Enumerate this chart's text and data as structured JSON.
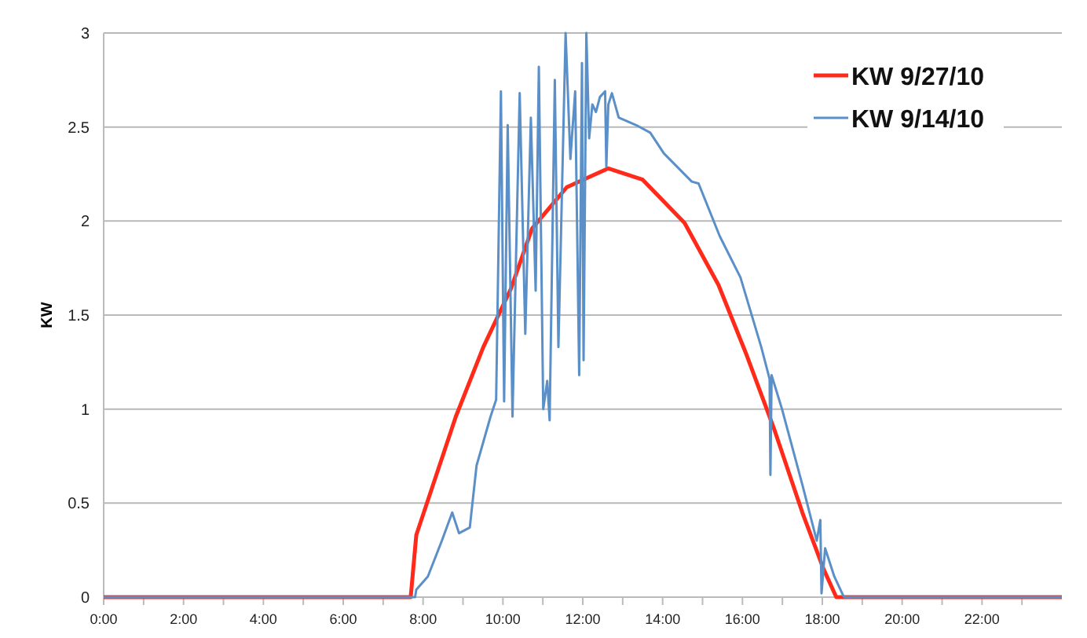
{
  "chart_data": {
    "type": "line",
    "ylabel": "KW",
    "xlim": [
      0,
      24
    ],
    "ylim": [
      0,
      3
    ],
    "yticks": [
      0,
      0.5,
      1,
      1.5,
      2,
      2.5,
      3
    ],
    "xticks": [
      {
        "value": 0,
        "label": "0:00"
      },
      {
        "value": 1,
        "label": null
      },
      {
        "value": 2,
        "label": "2:00"
      },
      {
        "value": 3,
        "label": null
      },
      {
        "value": 4,
        "label": "4:00"
      },
      {
        "value": 5,
        "label": null
      },
      {
        "value": 6,
        "label": "6:00"
      },
      {
        "value": 7,
        "label": null
      },
      {
        "value": 8,
        "label": "8:00"
      },
      {
        "value": 9,
        "label": null
      },
      {
        "value": 10,
        "label": "10:00"
      },
      {
        "value": 11,
        "label": null
      },
      {
        "value": 12,
        "label": "12:00"
      },
      {
        "value": 13,
        "label": null
      },
      {
        "value": 14,
        "label": "14:00"
      },
      {
        "value": 15,
        "label": null
      },
      {
        "value": 16,
        "label": "16:00"
      },
      {
        "value": 17,
        "label": null
      },
      {
        "value": 18,
        "label": "18:00"
      },
      {
        "value": 19,
        "label": null
      },
      {
        "value": 20,
        "label": "20:00"
      },
      {
        "value": 21,
        "label": null
      },
      {
        "value": 22,
        "label": "22:00"
      },
      {
        "value": 23,
        "label": null
      }
    ],
    "grid": "y",
    "legend": "top right",
    "marker": "none",
    "line_style": "solid",
    "series": [
      {
        "name": "KW 9/27/10",
        "color": "#ff2a1a",
        "x": [
          0,
          7.69,
          7.83,
          8.82,
          9.51,
          10.2,
          10.73,
          11.6,
          12.64,
          13.5,
          14.55,
          15.4,
          16.1,
          16.8,
          17.5,
          18.03,
          18.35,
          24
        ],
        "values": [
          0,
          0,
          0.33,
          0.96,
          1.33,
          1.64,
          1.96,
          2.18,
          2.28,
          2.22,
          1.99,
          1.66,
          1.29,
          0.89,
          0.45,
          0.15,
          0,
          0
        ]
      },
      {
        "name": "KW 9/14/10",
        "color": "#5b8fc7",
        "x": [
          0,
          7.8,
          7.83,
          8.12,
          8.47,
          8.73,
          8.9,
          9.17,
          9.34,
          9.69,
          9.83,
          9.95,
          10.03,
          10.12,
          10.24,
          10.42,
          10.56,
          10.7,
          10.82,
          10.9,
          11.01,
          11.11,
          11.17,
          11.3,
          11.39,
          11.57,
          11.69,
          11.81,
          11.91,
          11.98,
          12.02,
          12.09,
          12.16,
          12.24,
          12.33,
          12.43,
          12.56,
          12.59,
          12.64,
          12.73,
          12.9,
          13.34,
          13.69,
          14.03,
          14.73,
          14.9,
          15.43,
          15.95,
          16.47,
          16.68,
          16.7,
          16.73,
          16.99,
          17.51,
          17.86,
          17.95,
          17.98,
          18.07,
          18.3,
          18.52,
          18.56,
          24
        ],
        "values": [
          0,
          0,
          0.04,
          0.11,
          0.3,
          0.45,
          0.34,
          0.37,
          0.7,
          0.96,
          1.05,
          2.69,
          1.04,
          2.51,
          0.96,
          2.68,
          1.4,
          2.55,
          1.63,
          2.82,
          1,
          1.15,
          0.94,
          2.75,
          1.33,
          3,
          2.33,
          2.69,
          1.18,
          2.84,
          1.26,
          3,
          2.44,
          2.62,
          2.58,
          2.66,
          2.69,
          2.29,
          2.62,
          2.68,
          2.55,
          2.51,
          2.47,
          2.36,
          2.21,
          2.2,
          1.92,
          1.7,
          1.33,
          1.16,
          0.65,
          1.18,
          1,
          0.59,
          0.3,
          0.41,
          0.02,
          0.26,
          0.11,
          0.01,
          0,
          0
        ]
      }
    ]
  }
}
